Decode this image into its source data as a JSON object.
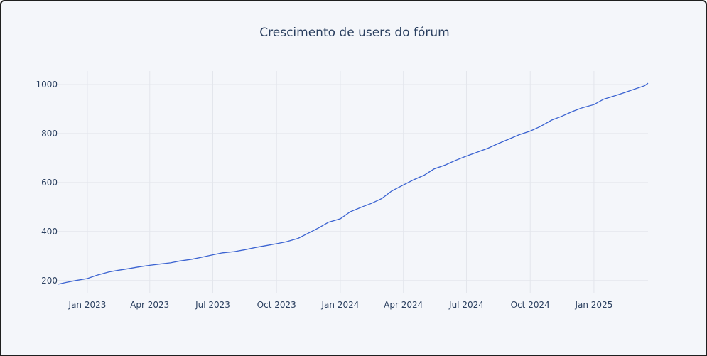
{
  "chart_data": {
    "type": "line",
    "title": "Crescimento de users do fórum",
    "xlabel": "",
    "ylabel": "",
    "x_ticks": [
      "Jan 2023",
      "Apr 2023",
      "Jul 2023",
      "Oct 2023",
      "Jan 2024",
      "Apr 2024",
      "Jul 2024",
      "Oct 2024",
      "Jan 2025"
    ],
    "y_ticks": [
      200,
      400,
      600,
      800,
      1000
    ],
    "xlim": [
      "2022-11-20",
      "2025-03-20"
    ],
    "ylim": [
      150,
      1055
    ],
    "grid": true,
    "series": [
      {
        "name": "users",
        "color": "#3b63d1",
        "points": [
          [
            "2022-11-20",
            185
          ],
          [
            "2022-12-01",
            192
          ],
          [
            "2022-12-15",
            200
          ],
          [
            "2023-01-01",
            208
          ],
          [
            "2023-01-15",
            222
          ],
          [
            "2023-02-01",
            235
          ],
          [
            "2023-02-15",
            242
          ],
          [
            "2023-03-01",
            248
          ],
          [
            "2023-03-15",
            255
          ],
          [
            "2023-04-01",
            262
          ],
          [
            "2023-04-15",
            267
          ],
          [
            "2023-05-01",
            272
          ],
          [
            "2023-05-15",
            280
          ],
          [
            "2023-06-01",
            287
          ],
          [
            "2023-06-15",
            295
          ],
          [
            "2023-07-01",
            305
          ],
          [
            "2023-07-15",
            313
          ],
          [
            "2023-08-01",
            318
          ],
          [
            "2023-08-15",
            325
          ],
          [
            "2023-09-01",
            335
          ],
          [
            "2023-09-15",
            342
          ],
          [
            "2023-10-01",
            350
          ],
          [
            "2023-10-15",
            358
          ],
          [
            "2023-11-01",
            372
          ],
          [
            "2023-11-15",
            392
          ],
          [
            "2023-12-01",
            415
          ],
          [
            "2023-12-15",
            438
          ],
          [
            "2024-01-01",
            452
          ],
          [
            "2024-01-15",
            480
          ],
          [
            "2024-02-01",
            500
          ],
          [
            "2024-02-15",
            515
          ],
          [
            "2024-03-01",
            535
          ],
          [
            "2024-03-15",
            565
          ],
          [
            "2024-04-01",
            590
          ],
          [
            "2024-04-15",
            610
          ],
          [
            "2024-05-01",
            630
          ],
          [
            "2024-05-15",
            655
          ],
          [
            "2024-06-01",
            672
          ],
          [
            "2024-06-15",
            690
          ],
          [
            "2024-07-01",
            708
          ],
          [
            "2024-07-15",
            722
          ],
          [
            "2024-08-01",
            740
          ],
          [
            "2024-08-15",
            758
          ],
          [
            "2024-09-01",
            778
          ],
          [
            "2024-09-15",
            795
          ],
          [
            "2024-10-01",
            810
          ],
          [
            "2024-10-15",
            828
          ],
          [
            "2024-11-01",
            855
          ],
          [
            "2024-11-15",
            870
          ],
          [
            "2024-12-01",
            890
          ],
          [
            "2024-12-15",
            905
          ],
          [
            "2025-01-01",
            918
          ],
          [
            "2025-01-15",
            940
          ],
          [
            "2025-02-01",
            955
          ],
          [
            "2025-02-15",
            968
          ],
          [
            "2025-03-01",
            982
          ],
          [
            "2025-03-15",
            995
          ],
          [
            "2025-03-20",
            1005
          ]
        ]
      }
    ]
  }
}
